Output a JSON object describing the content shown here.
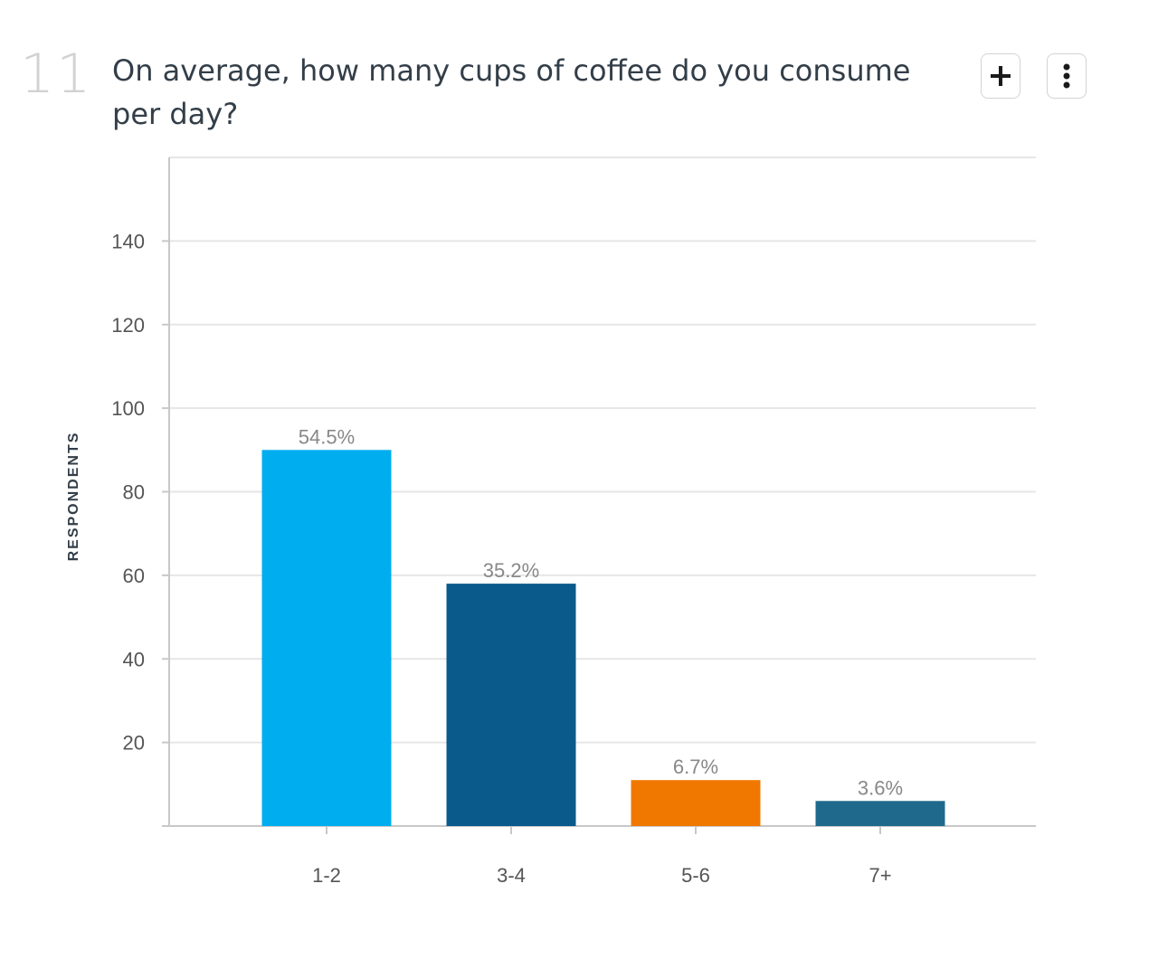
{
  "question": {
    "number": "11",
    "text": "On average, how many cups of coffee do you consume per day?"
  },
  "toolbar": {
    "add_icon": "plus-icon",
    "more_icon": "vertical-ellipsis-icon"
  },
  "chart_data": {
    "type": "bar",
    "ylabel": "RESPONDENTS",
    "xlabel": "",
    "ylim": [
      0,
      160
    ],
    "yticks": [
      20,
      40,
      60,
      80,
      100,
      120,
      140
    ],
    "grid": true,
    "categories": [
      "1-2",
      "3-4",
      "5-6",
      "7+"
    ],
    "values": [
      90,
      58,
      11,
      6
    ],
    "data_labels": [
      "54.5%",
      "35.2%",
      "6.7%",
      "3.6%"
    ],
    "colors": [
      "#00adef",
      "#0a5a8c",
      "#f07800",
      "#1f6a8c"
    ]
  },
  "colors": {
    "grid": "#e6e6e6",
    "axis": "#c8c8c8"
  }
}
